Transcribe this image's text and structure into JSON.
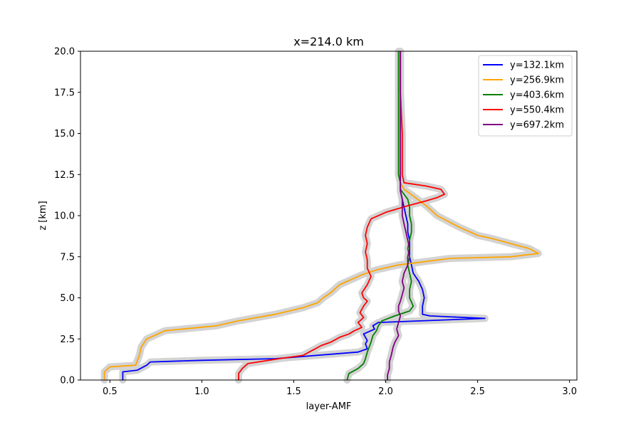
{
  "chart_data": {
    "type": "line",
    "title": "x=214.0 km",
    "xlabel": "layer-AMF",
    "ylabel": "z [km]",
    "xlim": [
      0.34,
      3.04
    ],
    "ylim": [
      0,
      20
    ],
    "xticks": [
      "0.5",
      "1.0",
      "1.5",
      "2.0",
      "2.5",
      "3.0"
    ],
    "xtick_values": [
      0.5,
      1.0,
      1.5,
      2.0,
      2.5,
      3.0
    ],
    "yticks": [
      "0.0",
      "2.5",
      "5.0",
      "7.5",
      "10.0",
      "12.5",
      "15.0",
      "17.5",
      "20.0"
    ],
    "ytick_values": [
      0,
      2.5,
      5,
      7.5,
      10,
      12.5,
      15,
      17.5,
      20
    ],
    "grid": false,
    "legend_position": "top-right",
    "uncertainty_color": "#d3d3d3",
    "series": [
      {
        "name": "y=132.1km",
        "color": "#0000ff",
        "points": [
          [
            0.57,
            0
          ],
          [
            0.57,
            0.5
          ],
          [
            0.65,
            0.6
          ],
          [
            0.7,
            0.9
          ],
          [
            0.72,
            1.1
          ],
          [
            1.0,
            1.2
          ],
          [
            1.4,
            1.3
          ],
          [
            1.85,
            1.7
          ],
          [
            1.9,
            1.9
          ],
          [
            1.89,
            2.2
          ],
          [
            1.9,
            2.4
          ],
          [
            1.88,
            2.8
          ],
          [
            1.94,
            3.1
          ],
          [
            1.93,
            3.3
          ],
          [
            1.96,
            3.5
          ],
          [
            2.54,
            3.75
          ],
          [
            2.24,
            3.9
          ],
          [
            2.2,
            4.0
          ],
          [
            2.2,
            4.5
          ],
          [
            2.21,
            5.0
          ],
          [
            2.2,
            5.5
          ],
          [
            2.18,
            6.0
          ],
          [
            2.15,
            6.5
          ],
          [
            2.14,
            7.0
          ],
          [
            2.13,
            7.5
          ],
          [
            2.13,
            8.0
          ],
          [
            2.13,
            8.5
          ],
          [
            2.12,
            9.0
          ],
          [
            2.12,
            9.5
          ],
          [
            2.11,
            10.0
          ],
          [
            2.1,
            10.5
          ],
          [
            2.09,
            11.0
          ],
          [
            2.08,
            11.5
          ],
          [
            2.08,
            12.0
          ],
          [
            2.07,
            12.5
          ],
          [
            2.07,
            13.5
          ],
          [
            2.07,
            15
          ],
          [
            2.07,
            17.5
          ],
          [
            2.07,
            20
          ]
        ]
      },
      {
        "name": "y=256.9km",
        "color": "#ffa500",
        "points": [
          [
            0.47,
            0
          ],
          [
            0.47,
            0.5
          ],
          [
            0.5,
            0.8
          ],
          [
            0.64,
            0.9
          ],
          [
            0.66,
            1.5
          ],
          [
            0.67,
            2.0
          ],
          [
            0.7,
            2.5
          ],
          [
            0.8,
            3.0
          ],
          [
            1.08,
            3.3
          ],
          [
            1.2,
            3.6
          ],
          [
            1.4,
            4.0
          ],
          [
            1.55,
            4.4
          ],
          [
            1.63,
            4.7
          ],
          [
            1.66,
            5.0
          ],
          [
            1.7,
            5.3
          ],
          [
            1.75,
            5.8
          ],
          [
            1.87,
            6.4
          ],
          [
            1.95,
            6.7
          ],
          [
            2.07,
            7.0
          ],
          [
            2.35,
            7.4
          ],
          [
            2.68,
            7.5
          ],
          [
            2.83,
            7.7
          ],
          [
            2.78,
            8.0
          ],
          [
            2.58,
            8.6
          ],
          [
            2.5,
            8.8
          ],
          [
            2.4,
            9.3
          ],
          [
            2.28,
            10.0
          ],
          [
            2.22,
            10.6
          ],
          [
            2.15,
            11.2
          ],
          [
            2.1,
            11.6
          ],
          [
            2.08,
            12.0
          ],
          [
            2.07,
            12.5
          ],
          [
            2.07,
            13.5
          ],
          [
            2.07,
            15
          ],
          [
            2.07,
            17.5
          ],
          [
            2.07,
            20
          ]
        ]
      },
      {
        "name": "y=403.6km",
        "color": "#008000",
        "points": [
          [
            1.79,
            0
          ],
          [
            1.8,
            0.4
          ],
          [
            1.85,
            0.7
          ],
          [
            1.88,
            1.0
          ],
          [
            1.89,
            1.3
          ],
          [
            1.9,
            1.7
          ],
          [
            1.91,
            2.0
          ],
          [
            1.92,
            2.3
          ],
          [
            1.93,
            2.7
          ],
          [
            1.95,
            3.0
          ],
          [
            1.96,
            3.3
          ],
          [
            1.98,
            3.6
          ],
          [
            2.05,
            3.9
          ],
          [
            2.13,
            4.2
          ],
          [
            2.15,
            4.5
          ],
          [
            2.13,
            5.0
          ],
          [
            2.13,
            5.5
          ],
          [
            2.14,
            6.0
          ],
          [
            2.13,
            6.5
          ],
          [
            2.12,
            7.0
          ],
          [
            2.13,
            7.5
          ],
          [
            2.12,
            8.0
          ],
          [
            2.13,
            8.5
          ],
          [
            2.14,
            9.0
          ],
          [
            2.14,
            9.5
          ],
          [
            2.13,
            10.0
          ],
          [
            2.13,
            10.5
          ],
          [
            2.12,
            11.0
          ],
          [
            2.1,
            11.3
          ],
          [
            2.08,
            11.6
          ],
          [
            2.08,
            12.0
          ],
          [
            2.07,
            12.5
          ],
          [
            2.07,
            15
          ],
          [
            2.07,
            17.5
          ],
          [
            2.07,
            20
          ]
        ]
      },
      {
        "name": "y=550.4km",
        "color": "#ff0000",
        "points": [
          [
            1.2,
            0
          ],
          [
            1.2,
            0.4
          ],
          [
            1.22,
            0.7
          ],
          [
            1.25,
            1.0
          ],
          [
            1.42,
            1.3
          ],
          [
            1.55,
            1.5
          ],
          [
            1.6,
            1.8
          ],
          [
            1.65,
            2.1
          ],
          [
            1.7,
            2.3
          ],
          [
            1.75,
            2.6
          ],
          [
            1.8,
            2.8
          ],
          [
            1.83,
            3.0
          ],
          [
            1.87,
            3.2
          ],
          [
            1.85,
            3.5
          ],
          [
            1.88,
            3.8
          ],
          [
            1.86,
            4.1
          ],
          [
            1.88,
            4.5
          ],
          [
            1.9,
            4.8
          ],
          [
            1.88,
            5.0
          ],
          [
            1.87,
            5.3
          ],
          [
            1.9,
            5.8
          ],
          [
            1.92,
            6.3
          ],
          [
            1.9,
            6.8
          ],
          [
            1.9,
            7.3
          ],
          [
            1.89,
            7.8
          ],
          [
            1.9,
            8.3
          ],
          [
            1.89,
            8.8
          ],
          [
            1.9,
            9.3
          ],
          [
            1.92,
            9.8
          ],
          [
            2.0,
            10.2
          ],
          [
            2.12,
            10.6
          ],
          [
            2.22,
            10.9
          ],
          [
            2.28,
            11.1
          ],
          [
            2.32,
            11.3
          ],
          [
            2.3,
            11.6
          ],
          [
            2.22,
            11.8
          ],
          [
            2.1,
            12.0
          ],
          [
            2.09,
            12.5
          ],
          [
            2.09,
            15
          ],
          [
            2.08,
            17.5
          ],
          [
            2.08,
            20
          ]
        ]
      },
      {
        "name": "y=697.2km",
        "color": "#800080",
        "points": [
          [
            2.01,
            0
          ],
          [
            2.01,
            0.3
          ],
          [
            2.02,
            0.7
          ],
          [
            2.02,
            1.1
          ],
          [
            2.03,
            1.5
          ],
          [
            2.04,
            2.0
          ],
          [
            2.05,
            2.3
          ],
          [
            2.07,
            2.7
          ],
          [
            2.06,
            3.1
          ],
          [
            2.07,
            3.5
          ],
          [
            2.08,
            3.9
          ],
          [
            2.07,
            4.2
          ],
          [
            2.07,
            4.5
          ],
          [
            2.08,
            4.8
          ],
          [
            2.09,
            5.2
          ],
          [
            2.1,
            5.6
          ],
          [
            2.09,
            6.0
          ],
          [
            2.1,
            6.5
          ],
          [
            2.12,
            7.0
          ],
          [
            2.12,
            7.5
          ],
          [
            2.13,
            8.0
          ],
          [
            2.12,
            8.5
          ],
          [
            2.11,
            9.0
          ],
          [
            2.1,
            9.5
          ],
          [
            2.09,
            10.0
          ],
          [
            2.09,
            10.5
          ],
          [
            2.09,
            11.0
          ],
          [
            2.08,
            11.5
          ],
          [
            2.08,
            12.0
          ],
          [
            2.08,
            12.5
          ],
          [
            2.08,
            15
          ],
          [
            2.08,
            17.5
          ],
          [
            2.08,
            20
          ]
        ]
      }
    ]
  }
}
